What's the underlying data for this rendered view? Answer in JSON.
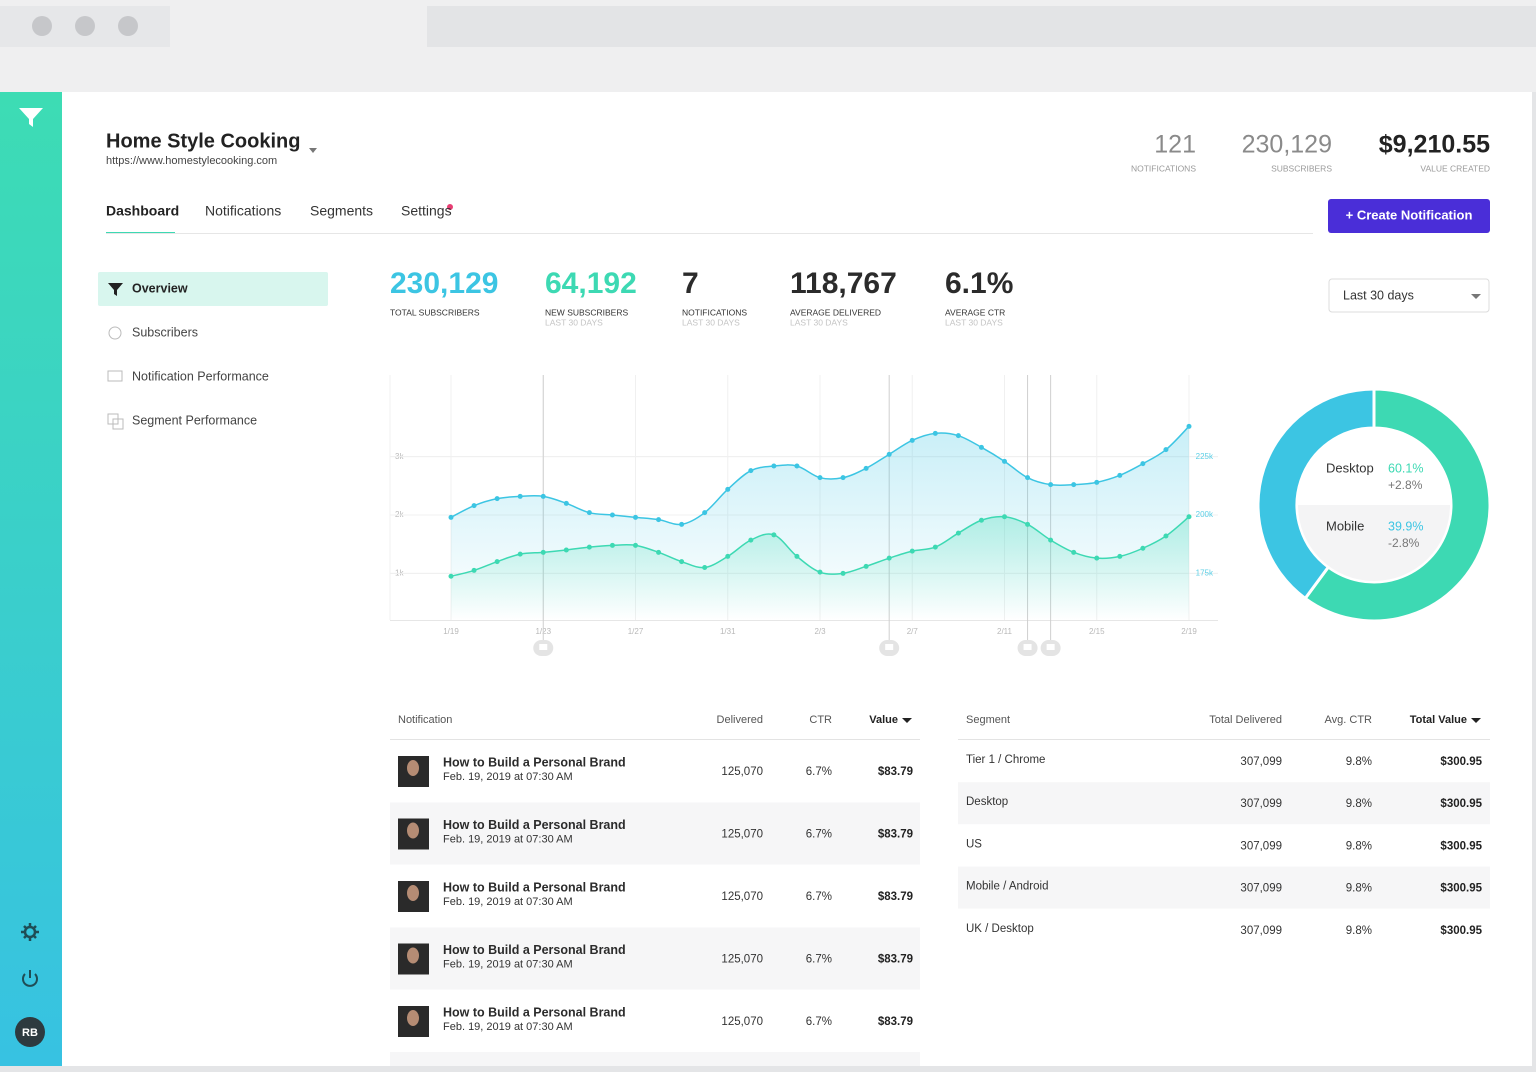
{
  "sidebar": {
    "avatar": "RB"
  },
  "header": {
    "site_name": "Home Style Cooking",
    "site_url": "https://www.homestylecooking.com",
    "stats": [
      {
        "value": "121",
        "label": "NOTIFICATIONS"
      },
      {
        "value": "230,129",
        "label": "SUBSCRIBERS"
      },
      {
        "value": "$9,210.55",
        "label": "VALUE CREATED"
      }
    ]
  },
  "tabs": [
    "Dashboard",
    "Notifications",
    "Segments",
    "Settings"
  ],
  "create_button": "+ Create Notification",
  "side_nav": [
    "Overview",
    "Subscribers",
    "Notification Performance",
    "Segment Performance"
  ],
  "kpis": [
    {
      "value": "230,129",
      "label": "TOTAL SUBSCRIBERS"
    },
    {
      "value": "64,192",
      "label": "NEW SUBSCRIBERS",
      "sub": "LAST 30 DAYS"
    },
    {
      "value": "7",
      "label": "NOTIFICATIONS",
      "sub": "LAST 30 DAYS"
    },
    {
      "value": "118,767",
      "label": "AVERAGE DELIVERED",
      "sub": "LAST 30 DAYS"
    },
    {
      "value": "6.1%",
      "label": "AVERAGE CTR",
      "sub": "LAST 30 DAYS"
    }
  ],
  "date_filter": "Last 30 days",
  "chart_data": [
    {
      "type": "line",
      "categories": [
        "1/19",
        null,
        null,
        null,
        "1/23",
        null,
        null,
        null,
        "1/27",
        null,
        null,
        null,
        "1/31",
        null,
        null,
        null,
        "2/3",
        null,
        null,
        null,
        "2/7",
        null,
        null,
        null,
        "2/11",
        null,
        null,
        null,
        "2/15",
        null,
        null,
        null,
        "2/19"
      ],
      "series": [
        {
          "color": "#3cc5e3",
          "axis": "y2",
          "values": [
            199000,
            204000,
            207000,
            208000,
            208000,
            205000,
            201000,
            200000,
            199000,
            198000,
            196000,
            201000,
            211000,
            219000,
            221000,
            221000,
            216000,
            216000,
            220000,
            226000,
            232000,
            235000,
            234000,
            229000,
            223000,
            216000,
            213000,
            213000,
            214000,
            217000,
            222000,
            228000,
            238000
          ]
        },
        {
          "color": "#3dd9b3",
          "values": [
            950,
            1050,
            1200,
            1330,
            1360,
            1400,
            1450,
            1480,
            1480,
            1360,
            1200,
            1100,
            1290,
            1570,
            1660,
            1290,
            1020,
            1000,
            1120,
            1260,
            1380,
            1450,
            1690,
            1910,
            1970,
            1840,
            1570,
            1360,
            1260,
            1290,
            1430,
            1640,
            1970
          ]
        }
      ],
      "ylim": [
        200,
        4400
      ],
      "yticks": [
        {
          "value": 1000,
          "label": "1k"
        },
        {
          "value": 2000,
          "label": "2k"
        },
        {
          "value": 3000,
          "label": "3k"
        }
      ],
      "y2lim": [
        155000,
        260000
      ],
      "y2ticks": [
        {
          "value": 175000,
          "label": "175k"
        },
        {
          "value": 200000,
          "label": "200k"
        },
        {
          "value": 225000,
          "label": "225k"
        }
      ],
      "grid": true
    },
    {
      "type": "pie",
      "categories": [
        "Desktop",
        "Mobile"
      ],
      "values": [
        60.1,
        39.9
      ],
      "value_labels": [
        "60.1%",
        "39.9%"
      ],
      "changes": [
        "+2.8%",
        "-2.8%"
      ],
      "colors": [
        "#3dd9b3",
        "#3cc5e3"
      ]
    }
  ],
  "notification_table": {
    "headers": [
      "Notification",
      "Delivered",
      "CTR",
      "Value"
    ],
    "rows": [
      {
        "title": "How to Build a Personal Brand",
        "date": "Feb. 19, 2019 at 07:30 AM",
        "delivered": "125,070",
        "ctr": "6.7%",
        "value": "$83.79"
      },
      {
        "title": "How to Build a Personal Brand",
        "date": "Feb. 19, 2019 at 07:30 AM",
        "delivered": "125,070",
        "ctr": "6.7%",
        "value": "$83.79"
      },
      {
        "title": "How to Build a Personal Brand",
        "date": "Feb. 19, 2019 at 07:30 AM",
        "delivered": "125,070",
        "ctr": "6.7%",
        "value": "$83.79"
      },
      {
        "title": "How to Build a Personal Brand",
        "date": "Feb. 19, 2019 at 07:30 AM",
        "delivered": "125,070",
        "ctr": "6.7%",
        "value": "$83.79"
      },
      {
        "title": "How to Build a Personal Brand",
        "date": "Feb. 19, 2019 at 07:30 AM",
        "delivered": "125,070",
        "ctr": "6.7%",
        "value": "$83.79"
      }
    ]
  },
  "segment_table": {
    "headers": [
      "Segment",
      "Total Delivered",
      "Avg. CTR",
      "Total Value"
    ],
    "rows": [
      {
        "segment": "Tier 1 / Chrome",
        "delivered": "307,099",
        "ctr": "9.8%",
        "value": "$300.95"
      },
      {
        "segment": "Desktop",
        "delivered": "307,099",
        "ctr": "9.8%",
        "value": "$300.95"
      },
      {
        "segment": "US",
        "delivered": "307,099",
        "ctr": "9.8%",
        "value": "$300.95"
      },
      {
        "segment": "Mobile / Android",
        "delivered": "307,099",
        "ctr": "9.8%",
        "value": "$300.95"
      },
      {
        "segment": "UK / Desktop",
        "delivered": "307,099",
        "ctr": "9.8%",
        "value": "$300.95"
      }
    ]
  }
}
